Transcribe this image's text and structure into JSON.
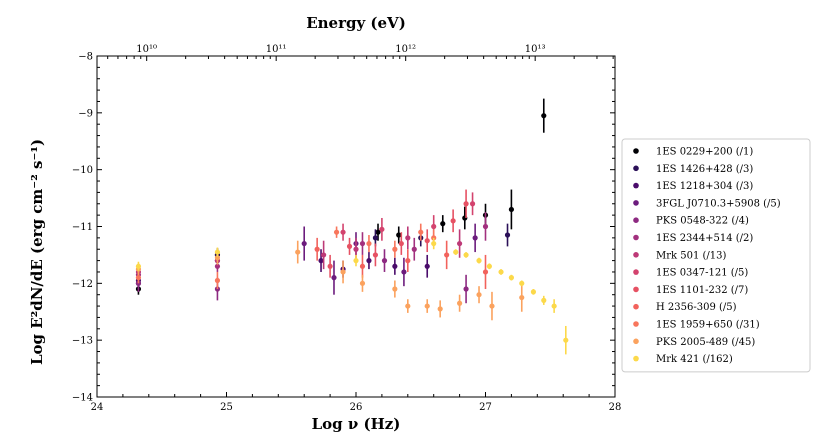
{
  "chart_data": {
    "type": "scatter",
    "title": "",
    "xlabel": "Log ν (Hz)",
    "ylabel": "Log E²dN/dE (erg cm⁻² s⁻¹)",
    "top_xlabel": "Energy (eV)",
    "xlim": [
      24,
      28
    ],
    "ylim": [
      -14,
      -8
    ],
    "x_ticks": [
      "24",
      "25",
      "26",
      "27",
      "28"
    ],
    "y_ticks": [
      "−14",
      "−13",
      "−12",
      "−11",
      "−10",
      "−9",
      "−8"
    ],
    "top_ticks": [
      {
        "label": "10¹⁰",
        "value": 10
      },
      {
        "label": "10¹¹",
        "value": 11
      },
      {
        "label": "10¹²",
        "value": 12
      },
      {
        "label": "10¹³",
        "value": 13
      }
    ],
    "legend_position": "right-outside",
    "series": [
      {
        "name": "1ES 0229+200 (/1)",
        "color": "#000004",
        "points": [
          {
            "x": 24.32,
            "y": -12.1,
            "err": 0.1
          },
          {
            "x": 24.93,
            "y": -11.5,
            "err": 0.1
          },
          {
            "x": 26.17,
            "y": -11.1,
            "err": 0.15
          },
          {
            "x": 26.33,
            "y": -11.15,
            "err": 0.15
          },
          {
            "x": 26.67,
            "y": -10.95,
            "err": 0.15
          },
          {
            "x": 26.84,
            "y": -10.85,
            "err": 0.2
          },
          {
            "x": 27.0,
            "y": -10.8,
            "err": 0.2
          },
          {
            "x": 27.2,
            "y": -10.7,
            "err": 0.35
          },
          {
            "x": 27.45,
            "y": -9.05,
            "err": 0.3
          }
        ]
      },
      {
        "name": "1ES 1426+428 (/3)",
        "color": "#2b1058",
        "points": [
          {
            "x": 24.32,
            "y": -12.0,
            "err": 0.1
          },
          {
            "x": 24.93,
            "y": -11.5,
            "err": 0.12
          },
          {
            "x": 26.15,
            "y": -11.2,
            "err": 0.15
          },
          {
            "x": 26.5,
            "y": -11.2,
            "err": 0.15
          },
          {
            "x": 27.17,
            "y": -11.15,
            "err": 0.2
          }
        ]
      },
      {
        "name": "1ES 1218+304 (/3)",
        "color": "#4a0c6b",
        "points": [
          {
            "x": 24.32,
            "y": -11.95,
            "err": 0.1
          },
          {
            "x": 24.93,
            "y": -11.6,
            "err": 0.12
          },
          {
            "x": 25.73,
            "y": -11.6,
            "err": 0.2
          },
          {
            "x": 25.9,
            "y": -11.75,
            "err": 0.15
          },
          {
            "x": 26.1,
            "y": -11.6,
            "err": 0.15
          },
          {
            "x": 26.3,
            "y": -11.7,
            "err": 0.15
          },
          {
            "x": 26.55,
            "y": -11.7,
            "err": 0.2
          }
        ]
      },
      {
        "name": "3FGL J0710.3+5908 (/5)",
        "color": "#6c1c7d",
        "points": [
          {
            "x": 25.6,
            "y": -11.3,
            "err": 0.3
          },
          {
            "x": 25.83,
            "y": -11.9,
            "err": 0.3
          },
          {
            "x": 26.0,
            "y": -11.3,
            "err": 0.2
          },
          {
            "x": 26.37,
            "y": -11.8,
            "err": 0.25
          },
          {
            "x": 26.92,
            "y": -11.2,
            "err": 0.25
          }
        ]
      },
      {
        "name": "PKS 0548-322 (/4)",
        "color": "#8d2981",
        "points": [
          {
            "x": 24.32,
            "y": -12.0,
            "err": 0.15
          },
          {
            "x": 24.93,
            "y": -12.1,
            "err": 0.2
          },
          {
            "x": 26.22,
            "y": -11.6,
            "err": 0.2
          },
          {
            "x": 26.85,
            "y": -12.1,
            "err": 0.25
          }
        ]
      },
      {
        "name": "1ES 2344+514 (/2)",
        "color": "#a2307e",
        "points": [
          {
            "x": 24.32,
            "y": -11.85,
            "err": 0.1
          },
          {
            "x": 24.93,
            "y": -11.7,
            "err": 0.1
          },
          {
            "x": 26.05,
            "y": -11.3,
            "err": 0.2
          },
          {
            "x": 26.45,
            "y": -11.4,
            "err": 0.2
          },
          {
            "x": 27.0,
            "y": -11.0,
            "err": 0.25
          }
        ]
      },
      {
        "name": "Mrk 501 (/13)",
        "color": "#bd3977",
        "points": [
          {
            "x": 24.32,
            "y": -11.8,
            "err": 0.1
          },
          {
            "x": 24.93,
            "y": -11.6,
            "err": 0.1
          },
          {
            "x": 25.75,
            "y": -11.5,
            "err": 0.25
          },
          {
            "x": 26.0,
            "y": -11.4,
            "err": 0.2
          },
          {
            "x": 26.4,
            "y": -11.2,
            "err": 0.2
          },
          {
            "x": 26.8,
            "y": -11.3,
            "err": 0.25
          }
        ]
      },
      {
        "name": "1ES 0347-121 (/5)",
        "color": "#d3436e",
        "points": [
          {
            "x": 25.9,
            "y": -11.1,
            "err": 0.15
          },
          {
            "x": 26.2,
            "y": -11.05,
            "err": 0.2
          },
          {
            "x": 26.6,
            "y": -11.0,
            "err": 0.2
          },
          {
            "x": 26.9,
            "y": -10.6,
            "err": 0.2
          }
        ]
      },
      {
        "name": "1ES 1101-232 (/7)",
        "color": "#e65163",
        "points": [
          {
            "x": 25.8,
            "y": -11.7,
            "err": 0.2
          },
          {
            "x": 25.95,
            "y": -11.35,
            "err": 0.15
          },
          {
            "x": 26.15,
            "y": -11.5,
            "err": 0.2
          },
          {
            "x": 26.35,
            "y": -11.3,
            "err": 0.2
          },
          {
            "x": 26.55,
            "y": -11.25,
            "err": 0.2
          },
          {
            "x": 26.75,
            "y": -10.9,
            "err": 0.2
          },
          {
            "x": 26.85,
            "y": -10.6,
            "err": 0.25
          }
        ]
      },
      {
        "name": "H 2356-309 (/5)",
        "color": "#f2625c",
        "points": [
          {
            "x": 25.7,
            "y": -11.4,
            "err": 0.2
          },
          {
            "x": 26.05,
            "y": -11.7,
            "err": 0.2
          },
          {
            "x": 26.4,
            "y": -11.6,
            "err": 0.2
          },
          {
            "x": 26.7,
            "y": -11.5,
            "err": 0.25
          },
          {
            "x": 27.0,
            "y": -11.8,
            "err": 0.3
          }
        ]
      },
      {
        "name": "1ES 1959+650 (/31)",
        "color": "#f8765c",
        "points": [
          {
            "x": 24.32,
            "y": -11.9,
            "err": 0.1
          },
          {
            "x": 24.93,
            "y": -11.95,
            "err": 0.15
          },
          {
            "x": 25.85,
            "y": -11.1,
            "err": 0.1
          },
          {
            "x": 26.1,
            "y": -11.3,
            "err": 0.15
          },
          {
            "x": 26.3,
            "y": -11.4,
            "err": 0.15
          },
          {
            "x": 26.5,
            "y": -11.1,
            "err": 0.15
          },
          {
            "x": 26.6,
            "y": -11.2,
            "err": 0.15
          }
        ]
      },
      {
        "name": "PKS 2005-489 (/45)",
        "color": "#fba25e",
        "points": [
          {
            "x": 24.32,
            "y": -11.75,
            "err": 0.1
          },
          {
            "x": 24.93,
            "y": -11.55,
            "err": 0.12
          },
          {
            "x": 25.55,
            "y": -11.45,
            "err": 0.2
          },
          {
            "x": 25.9,
            "y": -11.8,
            "err": 0.2
          },
          {
            "x": 26.05,
            "y": -12.0,
            "err": 0.15
          },
          {
            "x": 26.3,
            "y": -12.1,
            "err": 0.15
          },
          {
            "x": 26.4,
            "y": -12.4,
            "err": 0.12
          },
          {
            "x": 26.55,
            "y": -12.4,
            "err": 0.12
          },
          {
            "x": 26.65,
            "y": -12.45,
            "err": 0.15
          },
          {
            "x": 26.8,
            "y": -12.35,
            "err": 0.15
          },
          {
            "x": 26.95,
            "y": -12.2,
            "err": 0.15
          },
          {
            "x": 27.05,
            "y": -12.4,
            "err": 0.25
          },
          {
            "x": 27.28,
            "y": -12.25,
            "err": 0.25
          }
        ]
      },
      {
        "name": "Mrk 421 (/162)",
        "color": "#fcd94a",
        "points": [
          {
            "x": 24.32,
            "y": -11.7,
            "err": 0.08
          },
          {
            "x": 24.93,
            "y": -11.45,
            "err": 0.08
          },
          {
            "x": 26.0,
            "y": -11.6,
            "err": 0.1
          },
          {
            "x": 26.6,
            "y": -11.3,
            "err": 0.1
          },
          {
            "x": 26.77,
            "y": -11.45,
            "err": 0.05
          },
          {
            "x": 26.85,
            "y": -11.5,
            "err": 0.05
          },
          {
            "x": 26.95,
            "y": -11.6,
            "err": 0.05
          },
          {
            "x": 27.03,
            "y": -11.7,
            "err": 0.05
          },
          {
            "x": 27.12,
            "y": -11.8,
            "err": 0.05
          },
          {
            "x": 27.2,
            "y": -11.9,
            "err": 0.05
          },
          {
            "x": 27.28,
            "y": -12.0,
            "err": 0.05
          },
          {
            "x": 27.37,
            "y": -12.15,
            "err": 0.05
          },
          {
            "x": 27.45,
            "y": -12.3,
            "err": 0.08
          },
          {
            "x": 27.53,
            "y": -12.4,
            "err": 0.12
          },
          {
            "x": 27.62,
            "y": -13.0,
            "err": 0.25
          }
        ]
      }
    ]
  }
}
